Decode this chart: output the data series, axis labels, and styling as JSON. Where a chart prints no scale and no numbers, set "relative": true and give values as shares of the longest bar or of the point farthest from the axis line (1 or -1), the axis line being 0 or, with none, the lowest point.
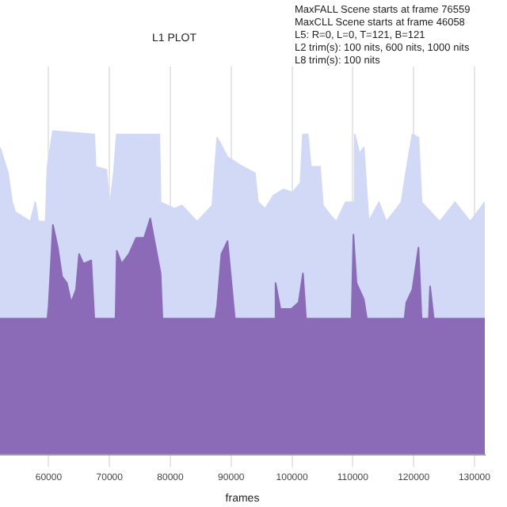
{
  "chart_data": {
    "type": "area",
    "title": "L1 PLOT",
    "xlabel": "frames",
    "relative": true,
    "grid": "x",
    "legend": false,
    "marker": "none",
    "annotations": [
      "MaxFALL Scene starts at frame 76559",
      "MaxCLL Scene starts at frame 46058",
      "L5: R=0, L=0, T=121, B=121",
      "L2 trim(s): 100 nits, 600 nits, 1000 nits",
      "L8 trim(s): 100 nits"
    ],
    "xlim": [
      52000,
      131700
    ],
    "xticks": [
      60000,
      70000,
      80000,
      90000,
      100000,
      110000,
      120000,
      130000
    ],
    "series": [
      {
        "color": "#d1d9f6",
        "x": [
          52000,
          53300,
          54000,
          54500,
          57000,
          57800,
          58300,
          59500,
          59800,
          60700,
          67500,
          67700,
          69500,
          70000,
          70700,
          71200,
          78200,
          78400,
          80700,
          81900,
          84400,
          86900,
          87700,
          89400,
          91900,
          93900,
          94400,
          95600,
          96900,
          98600,
          100100,
          101400,
          101800,
          102600,
          103100,
          104600,
          105100,
          106300,
          107300,
          108800,
          110100,
          110300,
          111100,
          111800,
          112600,
          114300,
          115500,
          118000,
          118800,
          119800,
          120800,
          121300,
          124300,
          126800,
          129300,
          131700
        ],
        "values": [
          0.95,
          0.87,
          0.78,
          0.75,
          0.72,
          0.78,
          0.72,
          0.72,
          0.89,
          1,
          0.99,
          0.89,
          0.88,
          0.76,
          0.87,
          0.99,
          0.99,
          0.78,
          0.76,
          0.77,
          0.72,
          0.77,
          0.98,
          0.92,
          0.89,
          0.87,
          0.78,
          0.76,
          0.8,
          0.82,
          0.81,
          0.84,
          0.99,
          0.99,
          0.89,
          0.89,
          0.77,
          0.74,
          0.72,
          0.78,
          0.78,
          0.99,
          0.93,
          0.95,
          0.72,
          0.78,
          0.72,
          0.78,
          0.88,
          0.99,
          0.98,
          0.78,
          0.72,
          0.78,
          0.72,
          0.78
        ]
      },
      {
        "color": "#8b6bb8",
        "x": [
          52000,
          59800,
          60000,
          60700,
          61500,
          62200,
          63000,
          63700,
          64500,
          65000,
          65700,
          67000,
          67500,
          71000,
          71200,
          72000,
          73200,
          74400,
          75700,
          76700,
          77400,
          78400,
          78700,
          87400,
          87700,
          88400,
          89400,
          90600,
          97100,
          97300,
          98100,
          99900,
          101100,
          101800,
          102300,
          109800,
          110100,
          110600,
          111800,
          112300,
          118500,
          118800,
          119800,
          120800,
          121300,
          122500,
          122700,
          123300,
          131700
        ],
        "values": [
          0.42,
          0.42,
          0.46,
          0.71,
          0.64,
          0.55,
          0.53,
          0.47,
          0.51,
          0.62,
          0.59,
          0.6,
          0.42,
          0.42,
          0.63,
          0.59,
          0.62,
          0.67,
          0.67,
          0.73,
          0.66,
          0.56,
          0.42,
          0.42,
          0.46,
          0.62,
          0.66,
          0.42,
          0.42,
          0.53,
          0.45,
          0.45,
          0.47,
          0.56,
          0.42,
          0.42,
          0.68,
          0.53,
          0.48,
          0.42,
          0.42,
          0.47,
          0.51,
          0.64,
          0.42,
          0.42,
          0.52,
          0.42,
          0.42
        ]
      }
    ]
  }
}
